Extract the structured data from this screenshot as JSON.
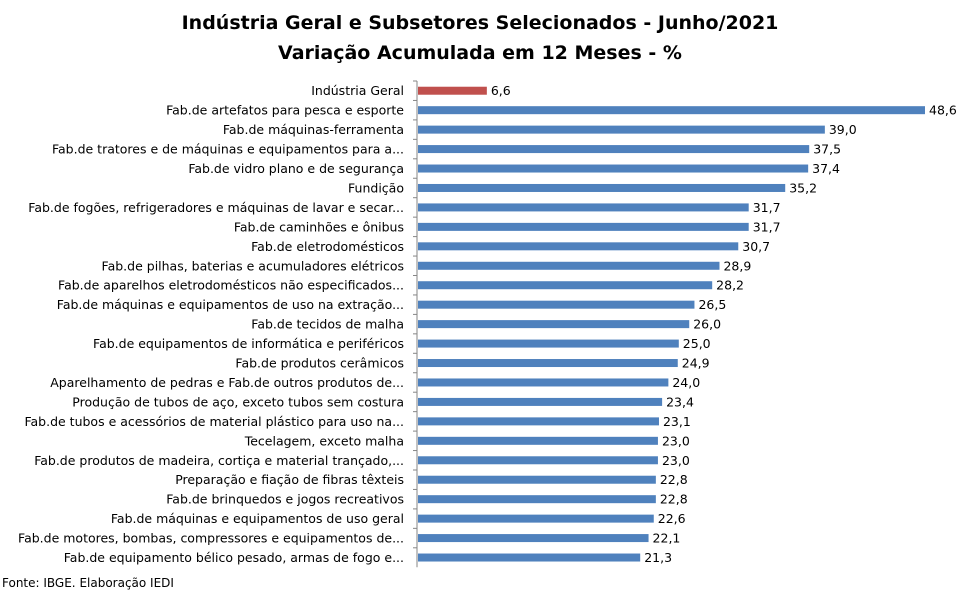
{
  "chart_data": {
    "type": "bar",
    "orientation": "horizontal",
    "title": "Indústria Geral e Subsetores Selecionados - Junho/2021",
    "subtitle": "Variação Acumulada em 12 Meses - %",
    "categories": [
      "Indústria Geral",
      "Fab.de artefatos para pesca e esporte",
      "Fab.de máquinas-ferramenta",
      "Fab.de tratores e de máquinas e equipamentos para a...",
      "Fab.de vidro plano e de segurança",
      "Fundição",
      "Fab.de fogões, refrigeradores e máquinas de lavar e secar...",
      "Fab.de caminhões e ônibus",
      "Fab.de eletrodomésticos",
      "Fab.de pilhas, baterias e acumuladores elétricos",
      "Fab.de aparelhos eletrodomésticos não especificados...",
      "Fab.de máquinas e equipamentos de uso na extração...",
      "Fab.de tecidos de malha",
      "Fab.de equipamentos de informática e periféricos",
      "Fab.de produtos cerâmicos",
      "Aparelhamento de pedras e Fab.de outros produtos de...",
      "Produção de tubos de aço, exceto tubos sem costura",
      "Fab.de tubos e acessórios de material plástico para uso na...",
      "Tecelagem, exceto malha",
      "Fab.de produtos de madeira, cortiça e material trançado,...",
      "Preparação e fiação de fibras têxteis",
      "Fab.de brinquedos e jogos recreativos",
      "Fab.de máquinas e equipamentos de uso geral",
      "Fab.de motores, bombas, compressores e equipamentos de...",
      "Fab.de equipamento bélico pesado, armas de fogo e..."
    ],
    "values": [
      6.6,
      48.6,
      39.0,
      37.5,
      37.4,
      35.2,
      31.7,
      31.7,
      30.7,
      28.9,
      28.2,
      26.5,
      26.0,
      25.0,
      24.9,
      24.0,
      23.4,
      23.1,
      23.0,
      23.0,
      22.8,
      22.8,
      22.6,
      22.1,
      21.3
    ],
    "value_labels": [
      "6,6",
      "48,6",
      "39,0",
      "37,5",
      "37,4",
      "35,2",
      "31,7",
      "31,7",
      "30,7",
      "28,9",
      "28,2",
      "26,5",
      "26,0",
      "25,0",
      "24,9",
      "24,0",
      "23,4",
      "23,1",
      "23,0",
      "23,0",
      "22,8",
      "22,8",
      "22,6",
      "22,1",
      "21,3"
    ],
    "xlim": [
      0,
      48.6
    ],
    "grid": false,
    "legend": "none",
    "colors": {
      "highlight": "#C0504D",
      "default": "#4F81BD"
    }
  },
  "source_note": "Fonte: IBGE. Elaboração IEDI"
}
